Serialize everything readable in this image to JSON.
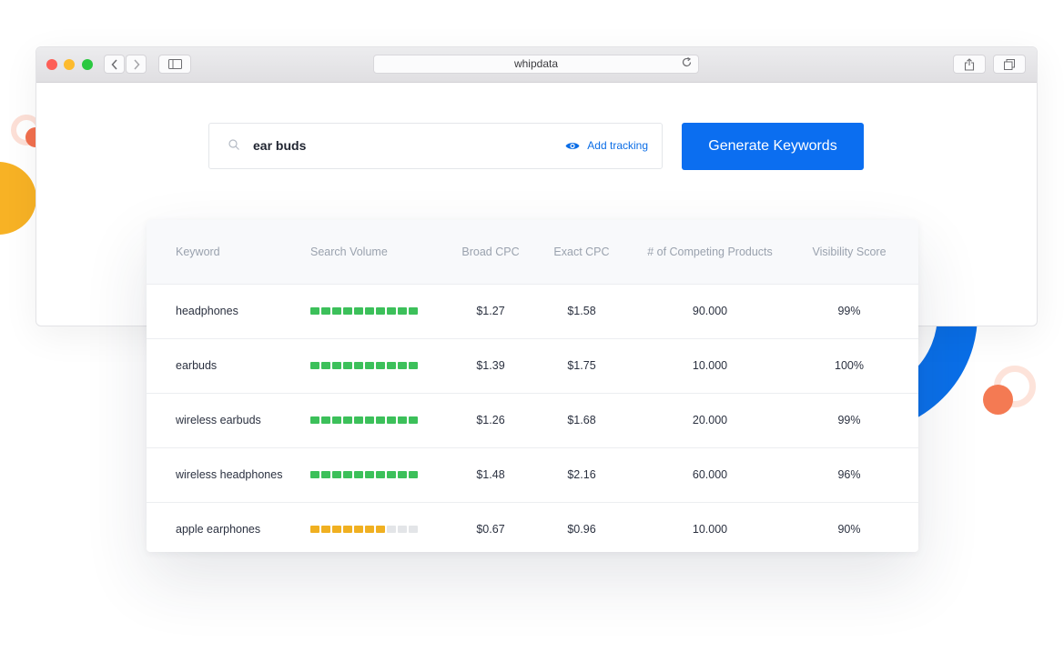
{
  "browser": {
    "url": "whipdata"
  },
  "search": {
    "value": "ear buds",
    "tracking_label": "Add tracking",
    "generate_label": "Generate Keywords"
  },
  "table": {
    "headers": {
      "keyword": "Keyword",
      "volume": "Search Volume",
      "broad": "Broad CPC",
      "exact": "Exact CPC",
      "competing": "# of Competing Products",
      "visibility": "Visibility Score"
    },
    "rows": [
      {
        "keyword": "headphones",
        "volume_level": 10,
        "volume_color": "#3cc05a",
        "broad": "$1.27",
        "exact": "$1.58",
        "competing": "90.000",
        "visibility": "99%"
      },
      {
        "keyword": "earbuds",
        "volume_level": 10,
        "volume_color": "#3cc05a",
        "broad": "$1.39",
        "exact": "$1.75",
        "competing": "10.000",
        "visibility": "100%"
      },
      {
        "keyword": "wireless earbuds",
        "volume_level": 10,
        "volume_color": "#3cc05a",
        "broad": "$1.26",
        "exact": "$1.68",
        "competing": "20.000",
        "visibility": "99%"
      },
      {
        "keyword": "wireless headphones",
        "volume_level": 10,
        "volume_color": "#3cc05a",
        "broad": "$1.48",
        "exact": "$2.16",
        "competing": "60.000",
        "visibility": "96%"
      },
      {
        "keyword": "apple earphones",
        "volume_level": 7,
        "volume_color": "#f0b021",
        "broad": "$0.67",
        "exact": "$0.96",
        "competing": "10.000",
        "visibility": "90%"
      }
    ],
    "volume_segments": 10
  },
  "icons": {
    "search": "search-icon",
    "eye": "eye-icon",
    "back": "chevron-left-icon",
    "forward": "chevron-right-icon",
    "sidebar": "sidebar-icon",
    "reload": "reload-icon",
    "share": "share-icon",
    "tabs": "tabs-icon"
  }
}
